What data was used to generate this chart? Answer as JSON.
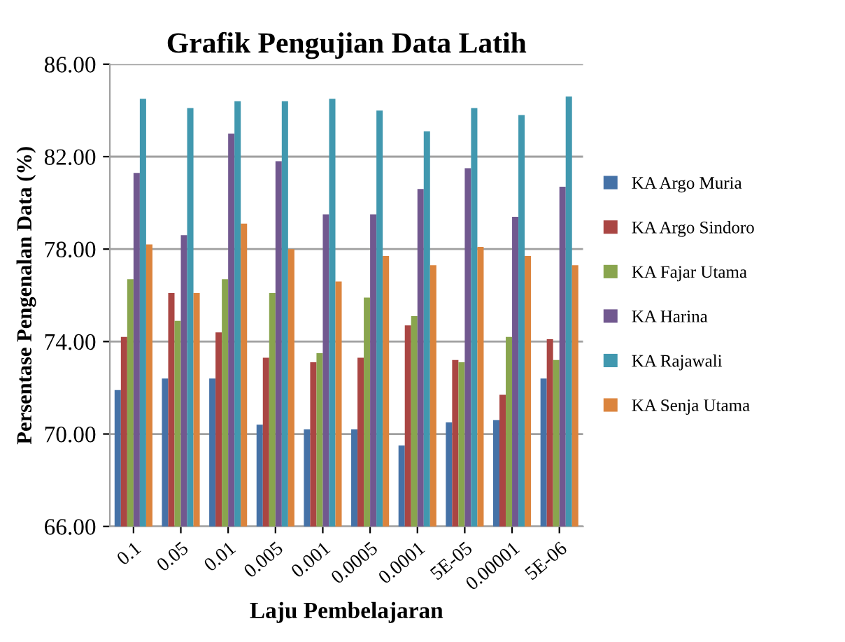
{
  "chart_data": {
    "type": "bar",
    "title": "Grafik Pengujian Data Latih",
    "xlabel": "Laju Pembelajaran",
    "ylabel": "Persentase Pengenalan Data (%)",
    "categories": [
      "0.1",
      "0.05",
      "0.01",
      "0.005",
      "0.001",
      "0.0005",
      "0.0001",
      "5E-05",
      "0.00001",
      "5E-06"
    ],
    "series": [
      {
        "name": "KA Argo Muria",
        "color": "#4572a7",
        "values": [
          71.9,
          72.4,
          72.4,
          70.4,
          70.2,
          70.2,
          69.5,
          70.5,
          70.6,
          72.4
        ]
      },
      {
        "name": "KA Argo Sindoro",
        "color": "#aa4643",
        "values": [
          74.2,
          76.1,
          74.4,
          73.3,
          73.1,
          73.3,
          74.7,
          73.2,
          71.7,
          74.1
        ]
      },
      {
        "name": "KA Fajar Utama",
        "color": "#89a54e",
        "values": [
          76.7,
          74.9,
          76.7,
          76.1,
          73.5,
          75.9,
          75.1,
          73.1,
          74.2,
          73.2
        ]
      },
      {
        "name": "KA Harina",
        "color": "#71588f",
        "values": [
          81.3,
          78.6,
          83.0,
          81.8,
          79.5,
          79.5,
          80.6,
          81.5,
          79.4,
          80.7
        ]
      },
      {
        "name": "KA Rajawali",
        "color": "#4198af",
        "values": [
          84.5,
          84.1,
          84.4,
          84.4,
          84.5,
          84.0,
          83.1,
          84.1,
          83.8,
          84.6
        ]
      },
      {
        "name": "KA Senja Utama",
        "color": "#db843d",
        "values": [
          78.2,
          76.1,
          79.1,
          78.0,
          76.6,
          77.7,
          77.3,
          78.1,
          77.7,
          77.3
        ]
      }
    ],
    "ylim": [
      66,
      86
    ],
    "yticks": [
      {
        "value": 66,
        "label": "66.00"
      },
      {
        "value": 70,
        "label": "70.00"
      },
      {
        "value": 74,
        "label": "74.00"
      },
      {
        "value": 78,
        "label": "78.00"
      },
      {
        "value": 82,
        "label": "82.00"
      },
      {
        "value": 86,
        "label": "86.00"
      }
    ],
    "grid": "y",
    "legend": "right"
  }
}
